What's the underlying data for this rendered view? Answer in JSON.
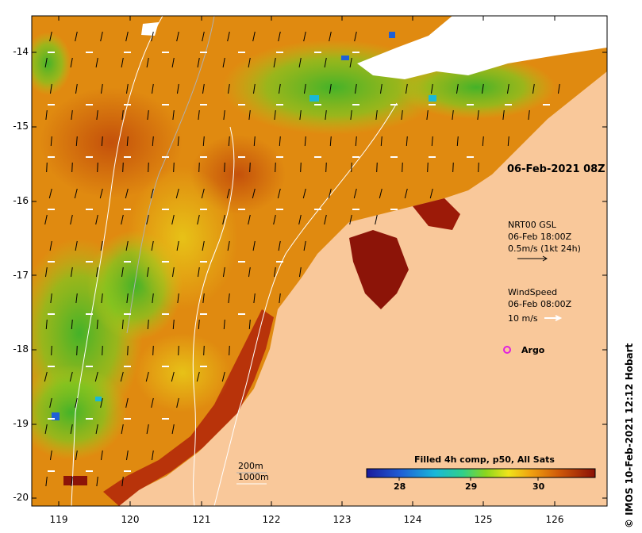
{
  "map": {
    "y_ticks": [
      "-14",
      "-15",
      "-16",
      "-17",
      "-18",
      "-19",
      "-20"
    ],
    "x_ticks": [
      "119",
      "120",
      "121",
      "122",
      "123",
      "124",
      "125",
      "126"
    ]
  },
  "annotations": {
    "date_title": "06-Feb-2021 08Z",
    "current_title": "NRT00 GSL",
    "current_time": "06-Feb 18:00Z",
    "current_scale": "0.5m/s (1kt 24h)",
    "wind_title": "WindSpeed",
    "wind_time": "06-Feb 08:00Z",
    "wind_scale": "10 m/s",
    "argo_label": "Argo",
    "contour_200": "200m",
    "contour_1000": "1000m"
  },
  "colorbar": {
    "title": "Filled 4h comp, p50, All Sats",
    "ticks": [
      "28",
      "29",
      "30"
    ]
  },
  "credit": "© IMOS 10-Feb-2021 12:12 Hobart",
  "colors": {
    "land": "#f9c89a",
    "cloud": "#ffffff",
    "current_arrow": "#000000",
    "wind_arrow": "#ffffff",
    "argo": "#e020e0"
  }
}
